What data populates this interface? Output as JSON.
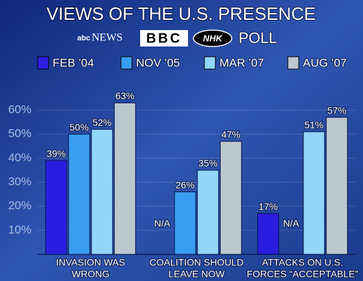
{
  "chart_data": {
    "type": "bar",
    "title": "VIEWS OF THE U.S. PRESENCE",
    "sources": [
      "abc",
      "NEWS",
      "BBC",
      "NHK"
    ],
    "subtitle": "POLL",
    "categories": [
      [
        "INVASION WAS",
        "WRONG"
      ],
      [
        "COALITION SHOULD",
        "LEAVE NOW"
      ],
      [
        "ATTACKS ON U.S.",
        "FORCES “ACCEPTABLE”"
      ]
    ],
    "series": [
      {
        "name": "FEB ’04",
        "color": "#2b1de0",
        "values": [
          39,
          null,
          17
        ],
        "value_labels": [
          "39%",
          "N/A",
          "17%"
        ]
      },
      {
        "name": "NOV ’05",
        "color": "#3a9ef0",
        "values": [
          50,
          26,
          null
        ],
        "value_labels": [
          "50%",
          "26%",
          "N/A"
        ]
      },
      {
        "name": "MAR ’07",
        "color": "#92d6fa",
        "values": [
          52,
          35,
          51
        ],
        "value_labels": [
          "52%",
          "35%",
          "51%"
        ]
      },
      {
        "name": "AUG ’07",
        "color": "#bcc8d0",
        "values": [
          63,
          47,
          57
        ],
        "value_labels": [
          "63%",
          "47%",
          "57%"
        ]
      }
    ],
    "ylim": [
      0,
      66
    ],
    "yticks": [
      {
        "value": 10,
        "label": "10%"
      },
      {
        "value": 20,
        "label": "20%"
      },
      {
        "value": 30,
        "label": "30%"
      },
      {
        "value": 40,
        "label": "40%"
      },
      {
        "value": 50,
        "label": "50%"
      },
      {
        "value": 60,
        "label": "60%"
      }
    ],
    "grid": true
  }
}
